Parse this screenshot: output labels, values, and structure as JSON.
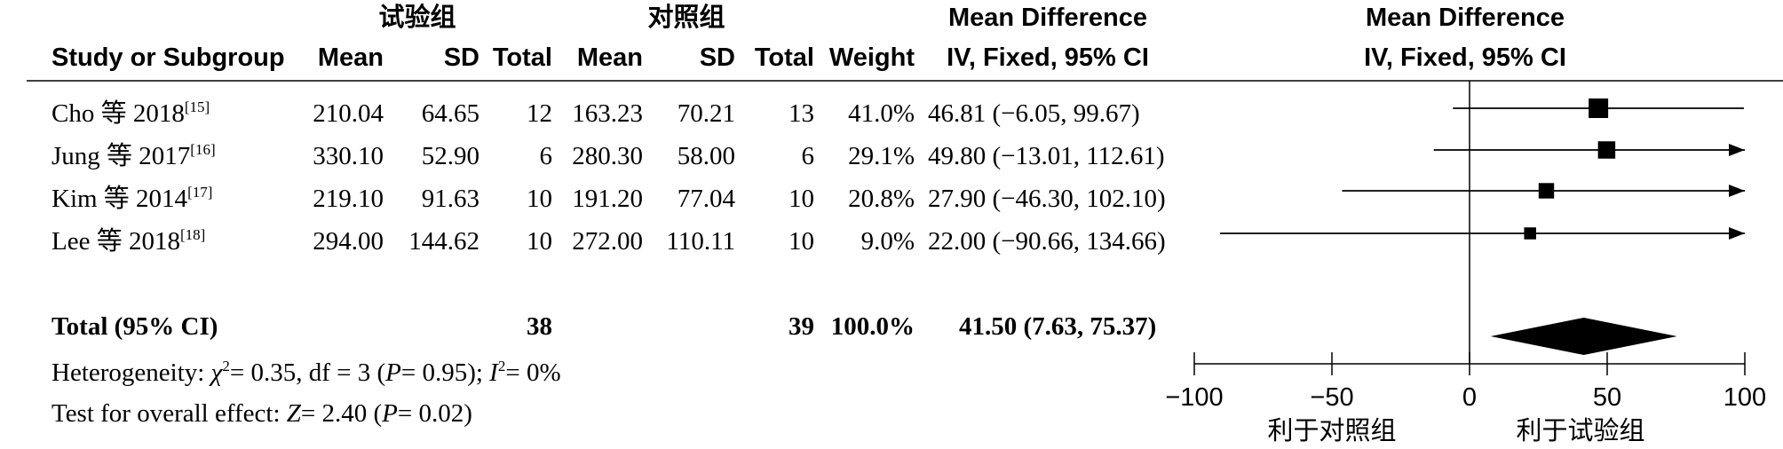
{
  "header": {
    "experimental_group": "试验组",
    "control_group": "对照组",
    "md_title": "Mean Difference",
    "md_method": "IV, Fixed, 95% CI",
    "plot_title": "Mean Difference",
    "plot_method": "IV, Fixed, 95% CI",
    "col_study": "Study or Subgroup",
    "col_mean": "Mean",
    "col_sd": "SD",
    "col_total": "Total",
    "col_weight": "Weight"
  },
  "studies": [
    {
      "name": "Cho 等 2018",
      "ref": "[15]",
      "exp_mean": "210.04",
      "exp_sd": "64.65",
      "exp_total": "12",
      "ctl_mean": "163.23",
      "ctl_sd": "70.21",
      "ctl_total": "13",
      "weight": "41.0%",
      "ci_text": "46.81 (−6.05, 99.67)"
    },
    {
      "name": "Jung 等 2017",
      "ref": "[16]",
      "exp_mean": "330.10",
      "exp_sd": "52.90",
      "exp_total": "6",
      "ctl_mean": "280.30",
      "ctl_sd": "58.00",
      "ctl_total": "6",
      "weight": "29.1%",
      "ci_text": "49.80 (−13.01, 112.61)"
    },
    {
      "name": "Kim 等 2014",
      "ref": "[17]",
      "exp_mean": "219.10",
      "exp_sd": "91.63",
      "exp_total": "10",
      "ctl_mean": "191.20",
      "ctl_sd": "77.04",
      "ctl_total": "10",
      "weight": "20.8%",
      "ci_text": "27.90 (−46.30, 102.10)"
    },
    {
      "name": "Lee 等 2018",
      "ref": "[18]",
      "exp_mean": "294.00",
      "exp_sd": "144.62",
      "exp_total": "10",
      "ctl_mean": "272.00",
      "ctl_sd": "110.11",
      "ctl_total": "10",
      "weight": "9.0%",
      "ci_text": "22.00 (−90.66, 134.66)"
    }
  ],
  "total": {
    "label": "Total (95% CI)",
    "exp_total": "38",
    "ctl_total": "39",
    "weight": "100.0%",
    "ci_text": "41.50 (7.63, 75.37)"
  },
  "heterogeneity": {
    "prefix": "Heterogeneity: ",
    "chi": "χ",
    "chi_sup": "2",
    "chi_rest": "= 0.35, df = 3 (",
    "p": "P",
    "p_rest": "= 0.95); ",
    "i": "I",
    "i_sup": "2",
    "i_rest": "= 0%"
  },
  "overall": {
    "prefix": "Test for overall effect: ",
    "z": "Z",
    "z_rest": "= 2.40 (",
    "p": "P",
    "p_rest": "= 0.02)"
  },
  "axis": {
    "favours_control": "利于对照组",
    "favours_experimental": "利于试验组"
  },
  "chart_data": {
    "type": "forest",
    "x_range": [
      -100,
      100
    ],
    "ticks": [
      -100,
      -50,
      0,
      50,
      100
    ],
    "tick_labels": [
      "−100",
      "−50",
      "0",
      "50",
      "100"
    ],
    "studies": [
      {
        "md": 46.81,
        "lower": -6.05,
        "upper": 99.67,
        "weight": 41.0
      },
      {
        "md": 49.8,
        "lower": -13.01,
        "upper": 112.61,
        "weight": 29.1
      },
      {
        "md": 27.9,
        "lower": -46.3,
        "upper": 102.1,
        "weight": 20.8
      },
      {
        "md": 22.0,
        "lower": -90.66,
        "upper": 134.66,
        "weight": 9.0
      }
    ],
    "pooled": {
      "md": 41.5,
      "lower": 7.63,
      "upper": 75.37
    },
    "colors": {
      "ink": "#000000"
    }
  }
}
